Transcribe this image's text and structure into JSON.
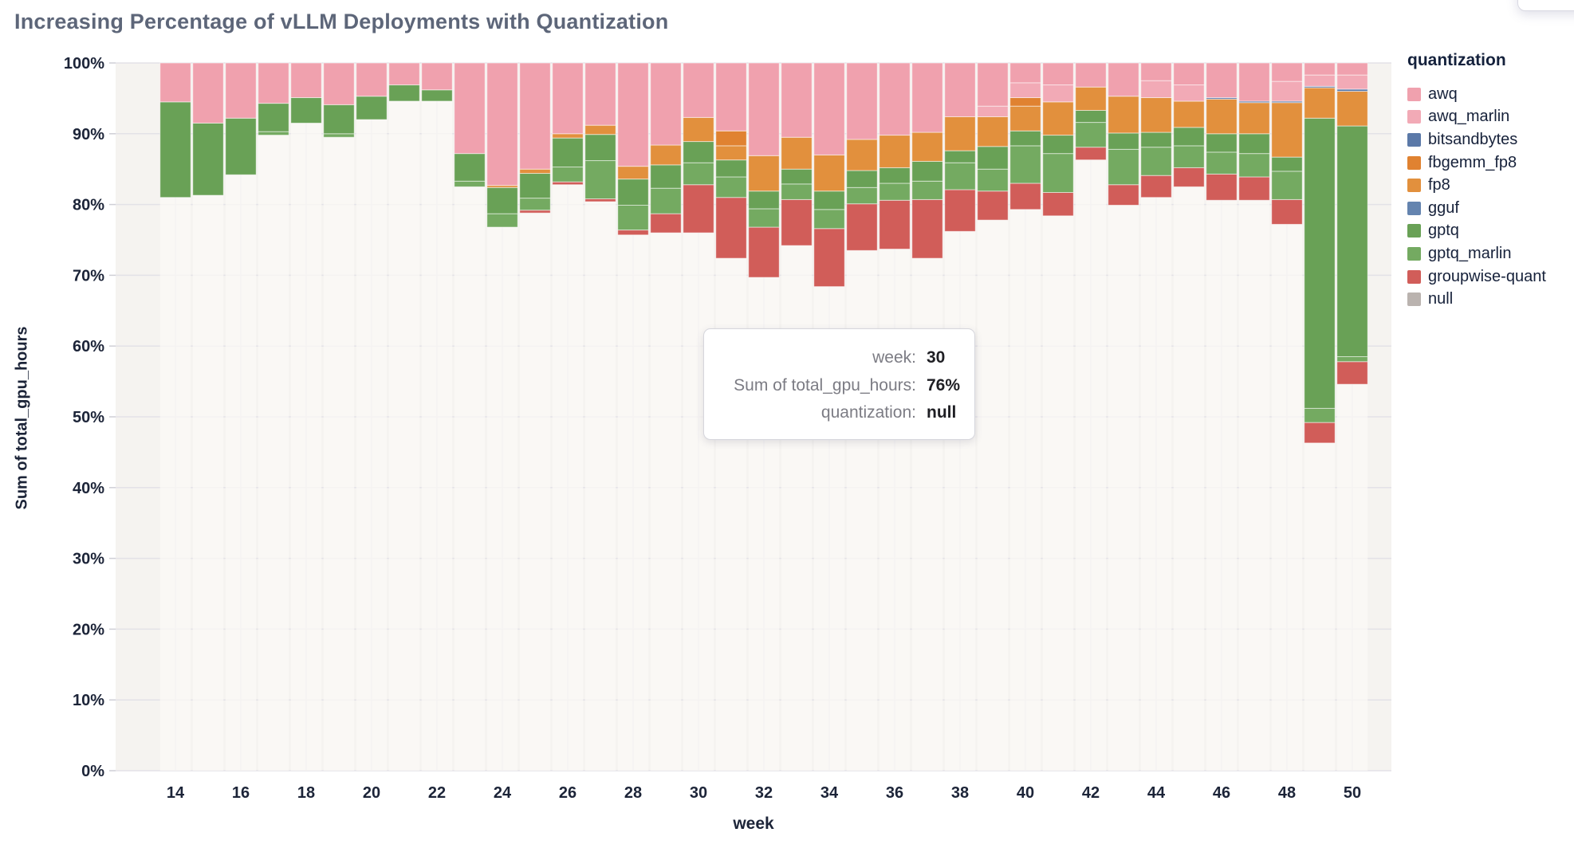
{
  "title": "Increasing Percentage of vLLM Deployments with Quantization",
  "tooltip": {
    "rows": [
      {
        "label": "week:",
        "value": "30"
      },
      {
        "label": "Sum of total_gpu_hours:",
        "value": "76%"
      },
      {
        "label": "quantization:",
        "value": "null"
      }
    ]
  },
  "style_colors": {
    "title_text": "#5d6679",
    "axis_text": "#1c2438",
    "plot_background": "#f5f3f0",
    "h_gridline": "#e3e2e7",
    "v_gridline": "#e6e5ea",
    "tick_mark": "#cfcfd6",
    "tooltip_border": "#d6d6dc",
    "tooltip_label": "#7c7c84",
    "tooltip_value": "#1f1f24"
  },
  "chart_data": {
    "type": "bar",
    "stacked": true,
    "normalized": true,
    "title": "Increasing Percentage of vLLM Deployments with Quantization",
    "xlabel": "week",
    "ylabel": "Sum of total_gpu_hours",
    "legend_title": "quantization",
    "ylim": [
      0,
      100
    ],
    "grid": true,
    "legend_position": "right",
    "x_weeks": [
      14,
      15,
      16,
      17,
      18,
      19,
      20,
      21,
      22,
      23,
      24,
      25,
      26,
      27,
      28,
      29,
      30,
      31,
      32,
      33,
      34,
      35,
      36,
      37,
      38,
      39,
      40,
      41,
      42,
      43,
      44,
      45,
      46,
      47,
      48,
      49,
      50
    ],
    "x_tick_labels": [
      14,
      16,
      18,
      20,
      22,
      24,
      26,
      28,
      30,
      32,
      34,
      36,
      38,
      40,
      42,
      44,
      46,
      48,
      50
    ],
    "y_tick_labels": [
      "0%",
      "10%",
      "20%",
      "30%",
      "40%",
      "50%",
      "60%",
      "70%",
      "80%",
      "90%",
      "100%"
    ],
    "legend": [
      {
        "name": "awq",
        "color": "#f0a1ae"
      },
      {
        "name": "awq_marlin",
        "color": "#f2aab6"
      },
      {
        "name": "bitsandbytes",
        "color": "#5b79a8"
      },
      {
        "name": "fbgemm_fp8",
        "color": "#e08231"
      },
      {
        "name": "fp8",
        "color": "#e2903d"
      },
      {
        "name": "gguf",
        "color": "#6484af"
      },
      {
        "name": "gptq",
        "color": "#69a156"
      },
      {
        "name": "gptq_marlin",
        "color": "#74aa61"
      },
      {
        "name": "groupwise-quant",
        "color": "#d15d59"
      },
      {
        "name": "null",
        "color": "#bab3af"
      }
    ],
    "series": [
      {
        "name": "null",
        "color": "#bab3af",
        "bar_fill": "rgba(252,250,247,0.72)",
        "values": [
          81.0,
          81.3,
          84.2,
          89.8,
          91.5,
          89.5,
          92.0,
          94.6,
          94.6,
          82.5,
          76.8,
          78.8,
          82.8,
          80.4,
          75.7,
          76.0,
          76.0,
          72.4,
          69.7,
          74.2,
          68.4,
          73.5,
          73.7,
          72.4,
          76.2,
          77.8,
          79.3,
          78.4,
          86.3,
          79.9,
          81.0,
          82.5,
          80.6,
          80.6,
          77.2,
          46.3,
          54.6
        ]
      },
      {
        "name": "groupwise-quant",
        "color": "#d15d59",
        "values": [
          0,
          0,
          0,
          0,
          0,
          0,
          0,
          0,
          0,
          0,
          0,
          0.4,
          0.4,
          0.4,
          0.7,
          2.7,
          6.8,
          8.6,
          7.1,
          6.5,
          8.2,
          6.6,
          6.9,
          8.3,
          5.9,
          4.1,
          3.7,
          3.3,
          1.8,
          2.9,
          3.1,
          2.7,
          3.7,
          3.3,
          3.5,
          2.9,
          3.2
        ]
      },
      {
        "name": "gptq_marlin",
        "color": "#74aa61",
        "values": [
          0,
          0,
          0,
          0.5,
          0,
          0.5,
          0,
          0,
          0,
          0.8,
          1.9,
          1.7,
          2.1,
          5.4,
          3.5,
          3.6,
          3.1,
          2.9,
          2.6,
          2.2,
          2.7,
          2.3,
          2.4,
          2.6,
          3.8,
          3.1,
          5.3,
          5.5,
          3.5,
          5.0,
          4.0,
          3.1,
          3.1,
          3.3,
          4.0,
          2.0,
          0.7
        ]
      },
      {
        "name": "gptq",
        "color": "#69a156",
        "values": [
          13.5,
          10.2,
          8.0,
          4.0,
          3.6,
          4.1,
          3.3,
          2.3,
          1.6,
          3.9,
          3.7,
          3.5,
          4.1,
          3.7,
          3.7,
          3.3,
          3.0,
          2.4,
          2.5,
          2.1,
          2.6,
          2.4,
          2.2,
          2.8,
          1.7,
          3.2,
          2.1,
          2.6,
          1.7,
          2.3,
          2.1,
          2.6,
          2.6,
          2.8,
          2.0,
          41.0,
          32.6
        ]
      },
      {
        "name": "gguf",
        "color": "#6484af",
        "values": [
          0,
          0,
          0,
          0,
          0,
          0,
          0,
          0,
          0,
          0,
          0,
          0,
          0,
          0,
          0,
          0,
          0,
          0,
          0,
          0,
          0,
          0,
          0,
          0,
          0,
          0,
          0,
          0,
          0,
          0,
          0,
          0,
          0,
          0,
          0,
          0,
          0
        ]
      },
      {
        "name": "fp8",
        "color": "#e2903d",
        "values": [
          0,
          0,
          0,
          0,
          0,
          0,
          0,
          0,
          0,
          0,
          0.3,
          0.6,
          0.6,
          1.3,
          1.8,
          2.8,
          3.4,
          2.0,
          5.0,
          4.5,
          5.1,
          4.4,
          4.6,
          4.1,
          4.8,
          4.2,
          3.5,
          4.7,
          3.3,
          5.2,
          4.9,
          3.7,
          4.9,
          4.4,
          7.7,
          4.3,
          4.9
        ]
      },
      {
        "name": "fbgemm_fp8",
        "color": "#e08231",
        "values": [
          0,
          0,
          0,
          0,
          0,
          0,
          0,
          0,
          0,
          0,
          0,
          0,
          0,
          0,
          0,
          0,
          0,
          2.1,
          0,
          0,
          0,
          0,
          0,
          0,
          0,
          0,
          1.2,
          0,
          0,
          0,
          0,
          0,
          0,
          0,
          0,
          0,
          0
        ]
      },
      {
        "name": "bitsandbytes",
        "color": "#5b79a8",
        "values": [
          0,
          0,
          0,
          0,
          0,
          0,
          0,
          0,
          0,
          0,
          0,
          0,
          0,
          0,
          0,
          0,
          0,
          0,
          0,
          0,
          0,
          0,
          0,
          0,
          0,
          0,
          0,
          0,
          0,
          0,
          0,
          0,
          0.2,
          0.2,
          0.2,
          0.2,
          0.3
        ]
      },
      {
        "name": "awq_marlin",
        "color": "#f2aab6",
        "values": [
          0,
          0,
          0,
          0,
          0,
          0,
          0,
          0,
          0,
          0,
          0,
          0,
          0,
          0,
          0,
          0,
          0,
          0,
          0,
          0,
          0,
          0,
          0,
          0,
          0,
          1.5,
          2.1,
          2.4,
          0,
          0,
          2.4,
          2.3,
          0,
          0,
          2.8,
          1.6,
          2.0
        ]
      },
      {
        "name": "awq",
        "color": "#f0a1ae",
        "values": [
          5.5,
          8.5,
          7.8,
          5.7,
          4.9,
          5.9,
          4.7,
          3.1,
          3.8,
          12.8,
          17.3,
          15.0,
          10.0,
          8.8,
          14.6,
          11.6,
          7.7,
          9.6,
          13.1,
          10.5,
          13.0,
          10.8,
          10.2,
          9.8,
          7.6,
          6.1,
          2.8,
          3.1,
          3.4,
          4.7,
          2.5,
          3.1,
          4.9,
          5.4,
          2.6,
          1.7,
          1.7
        ]
      }
    ]
  }
}
